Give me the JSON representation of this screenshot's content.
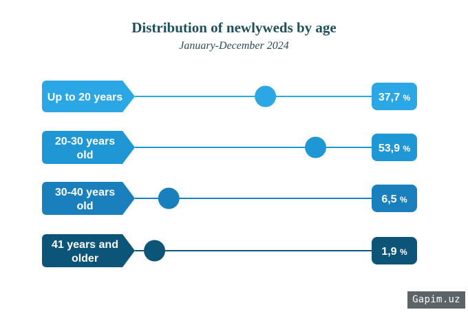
{
  "title": "Distribution of newlyweds by age",
  "subtitle": "January-December 2024",
  "watermark": "Gapim.uz",
  "chart_data": {
    "type": "bar",
    "title": "Distribution of newlyweds by age",
    "subtitle": "January-December 2024",
    "categories": [
      [
        "Up to 20 years"
      ],
      [
        "20-30 years",
        "old"
      ],
      [
        "30-40 years",
        "old"
      ],
      [
        "41 years and",
        "older"
      ]
    ],
    "values": [
      37.7,
      53.9,
      6.5,
      1.9
    ],
    "value_labels": [
      "37,7",
      "53,9",
      "6,5",
      "1,9"
    ],
    "unit": "%",
    "xlim": [
      0,
      60
    ],
    "colors": [
      "#2aa7e4",
      "#1e97d4",
      "#1a80bd",
      "#0c5478"
    ]
  }
}
